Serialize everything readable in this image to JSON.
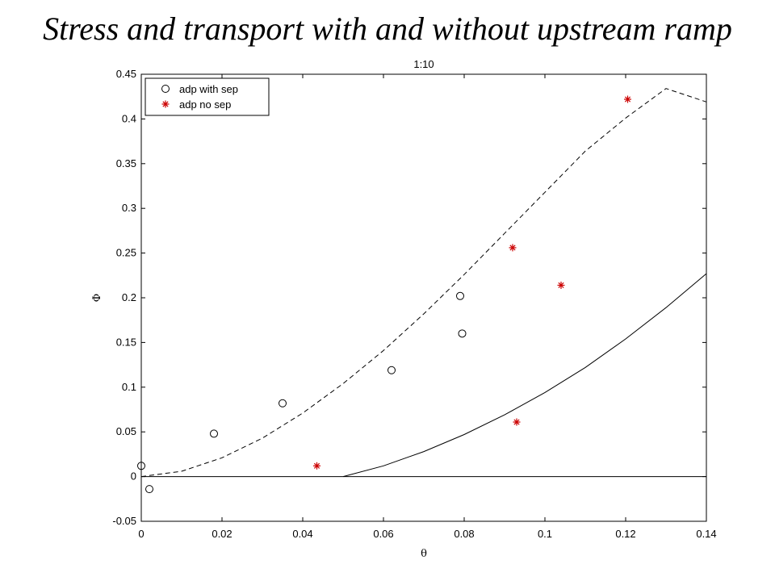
{
  "slide": {
    "title": "Stress and transport with and without upstream ramp"
  },
  "chart_data": {
    "type": "scatter",
    "title": "1:10",
    "xlabel": "θ",
    "ylabel": "Φ",
    "xlim": [
      0,
      0.14
    ],
    "ylim": [
      -0.05,
      0.45
    ],
    "x_ticks": [
      "0",
      "0.02",
      "0.04",
      "0.06",
      "0.08",
      "0.1",
      "0.12",
      "0.14"
    ],
    "y_ticks": [
      "-0.05",
      "0",
      "0.05",
      "0.1",
      "0.15",
      "0.2",
      "0.25",
      "0.3",
      "0.35",
      "0.4",
      "0.45"
    ],
    "grid": false,
    "legend_position": "top-left",
    "series": [
      {
        "name": "adp with sep",
        "marker": "circle",
        "color": "#000000",
        "points": [
          [
            0.0,
            0.012
          ],
          [
            0.002,
            -0.014
          ],
          [
            0.018,
            0.048
          ],
          [
            0.035,
            0.082
          ],
          [
            0.062,
            0.119
          ],
          [
            0.079,
            0.202
          ],
          [
            0.0795,
            0.16
          ]
        ]
      },
      {
        "name": "adp no sep",
        "marker": "star",
        "color": "#cc0000",
        "points": [
          [
            0.0435,
            0.012
          ],
          [
            0.092,
            0.256
          ],
          [
            0.093,
            0.061
          ],
          [
            0.104,
            0.214
          ],
          [
            0.1205,
            0.422
          ]
        ]
      }
    ],
    "curves": [
      {
        "style": "dashed",
        "color": "#000000",
        "points": [
          [
            0,
            0
          ],
          [
            0.01,
            0.006
          ],
          [
            0.02,
            0.021
          ],
          [
            0.03,
            0.043
          ],
          [
            0.04,
            0.071
          ],
          [
            0.05,
            0.104
          ],
          [
            0.06,
            0.141
          ],
          [
            0.07,
            0.182
          ],
          [
            0.08,
            0.226
          ],
          [
            0.09,
            0.272
          ],
          [
            0.1,
            0.318
          ],
          [
            0.11,
            0.364
          ],
          [
            0.12,
            0.401
          ],
          [
            0.13,
            0.434
          ],
          [
            0.14,
            0.419
          ]
        ]
      },
      {
        "style": "solid",
        "color": "#000000",
        "points": [
          [
            0.05,
            0
          ],
          [
            0.06,
            0.012
          ],
          [
            0.07,
            0.028
          ],
          [
            0.08,
            0.047
          ],
          [
            0.09,
            0.069
          ],
          [
            0.1,
            0.094
          ],
          [
            0.11,
            0.122
          ],
          [
            0.12,
            0.154
          ],
          [
            0.13,
            0.189
          ],
          [
            0.14,
            0.227
          ]
        ]
      },
      {
        "style": "solid",
        "color": "#000000",
        "points": [
          [
            0,
            0
          ],
          [
            0.14,
            0
          ]
        ]
      }
    ]
  }
}
